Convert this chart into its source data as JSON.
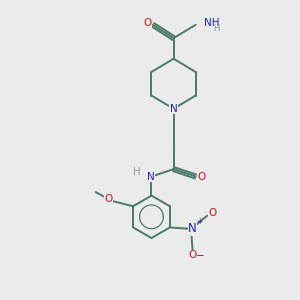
{
  "bg_color": "#ebebeb",
  "bond_color": "#4a7a6a",
  "N_color": "#2222bb",
  "O_color": "#cc1111",
  "H_color": "#999999",
  "font_size": 7.5,
  "bond_width": 1.4,
  "figsize": [
    3.0,
    3.0
  ],
  "dpi": 100,
  "xlim": [
    0,
    10
  ],
  "ylim": [
    0,
    10
  ]
}
